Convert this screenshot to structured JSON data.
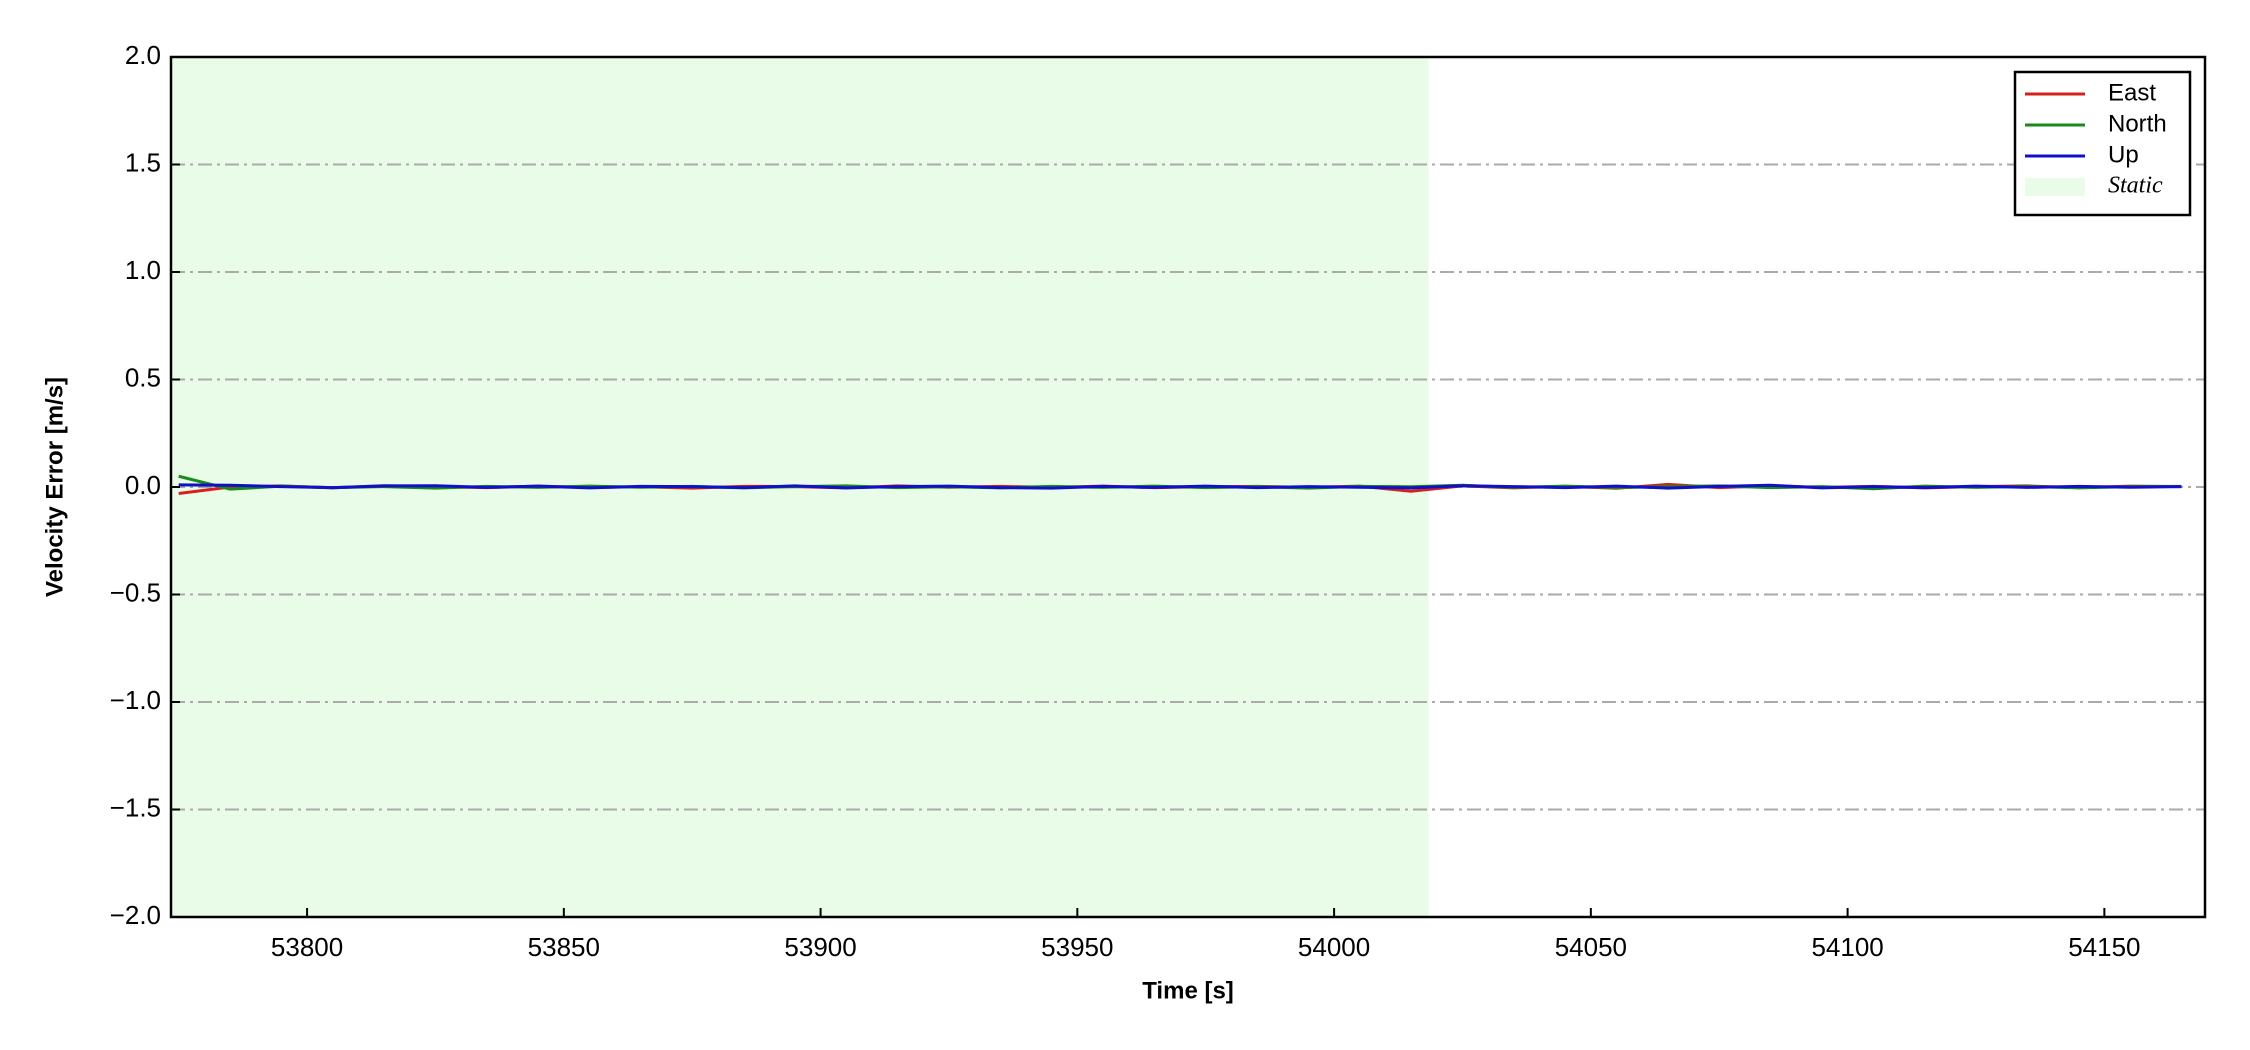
{
  "chart_data": {
    "type": "line",
    "xlabel": "Time [s]",
    "ylabel": "Velocity Error [m/s]",
    "x": [
      53775,
      53785,
      53795,
      53805,
      53815,
      53825,
      53835,
      53845,
      53855,
      53865,
      53875,
      53885,
      53895,
      53905,
      53915,
      53925,
      53935,
      53945,
      53955,
      53965,
      53975,
      53985,
      53995,
      54005,
      54015,
      54025,
      54035,
      54045,
      54055,
      54065,
      54075,
      54085,
      54095,
      54105,
      54115,
      54125,
      54135,
      54145,
      54155,
      54165
    ],
    "series": [
      {
        "name": "East",
        "color": "#d62020",
        "values": [
          -0.03,
          0.0,
          0.005,
          -0.004,
          0.006,
          0.002,
          -0.003,
          0.004,
          -0.002,
          0.001,
          -0.005,
          0.003,
          0.002,
          -0.004,
          0.005,
          -0.001,
          0.003,
          -0.002,
          0.004,
          -0.003,
          0.001,
          0.003,
          -0.002,
          0.004,
          -0.02,
          0.005,
          -0.004,
          0.003,
          -0.006,
          0.012,
          -0.003,
          0.006,
          -0.002,
          0.003,
          -0.004,
          0.002,
          0.005,
          -0.003,
          0.004,
          0.002
        ]
      },
      {
        "name": "North",
        "color": "#1a8a1a",
        "values": [
          0.05,
          -0.01,
          0.004,
          -0.003,
          0.002,
          -0.005,
          0.003,
          -0.002,
          0.004,
          -0.001,
          0.003,
          -0.004,
          0.002,
          0.005,
          -0.003,
          0.001,
          -0.004,
          0.003,
          -0.002,
          0.004,
          -0.003,
          0.002,
          -0.005,
          0.003,
          0.001,
          0.008,
          -0.002,
          0.004,
          -0.003,
          0.002,
          0.005,
          -0.003,
          0.002,
          -0.008,
          0.004,
          -0.002,
          0.003,
          -0.004,
          0.002,
          0.003
        ]
      },
      {
        "name": "Up",
        "color": "#1010c8",
        "values": [
          0.01,
          0.008,
          0.002,
          -0.003,
          0.005,
          0.006,
          -0.002,
          0.004,
          -0.004,
          0.003,
          0.002,
          -0.003,
          0.005,
          -0.004,
          0.002,
          0.004,
          -0.003,
          -0.005,
          0.003,
          -0.002,
          0.004,
          -0.003,
          0.002,
          -0.001,
          -0.004,
          0.006,
          0.002,
          -0.003,
          0.004,
          -0.005,
          0.003,
          0.008,
          -0.004,
          0.002,
          -0.003,
          0.004,
          -0.002,
          0.003,
          -0.001,
          0.002
        ]
      }
    ],
    "shaded": {
      "label": "Static",
      "color": "#e8fce8",
      "start": 53773.5,
      "end": 54018.4
    },
    "xlim": [
      53773.5,
      54169.6
    ],
    "xticks": [
      53800,
      53850,
      53900,
      53950,
      54000,
      54050,
      54100,
      54150
    ],
    "ylim": [
      -2,
      2
    ],
    "yticks": [
      {
        "value": -2,
        "label": "−2.0"
      },
      {
        "value": -1.5,
        "label": "−1.5"
      },
      {
        "value": -1,
        "label": "−1.0"
      },
      {
        "value": -0.5,
        "label": "−0.5"
      },
      {
        "value": 0,
        "label": "0.0"
      },
      {
        "value": 0.5,
        "label": "0.5"
      },
      {
        "value": 1,
        "label": "1.0"
      },
      {
        "value": 1.5,
        "label": "1.5"
      },
      {
        "value": 2,
        "label": "2.0"
      }
    ],
    "grid": true,
    "legend": "upper right"
  }
}
